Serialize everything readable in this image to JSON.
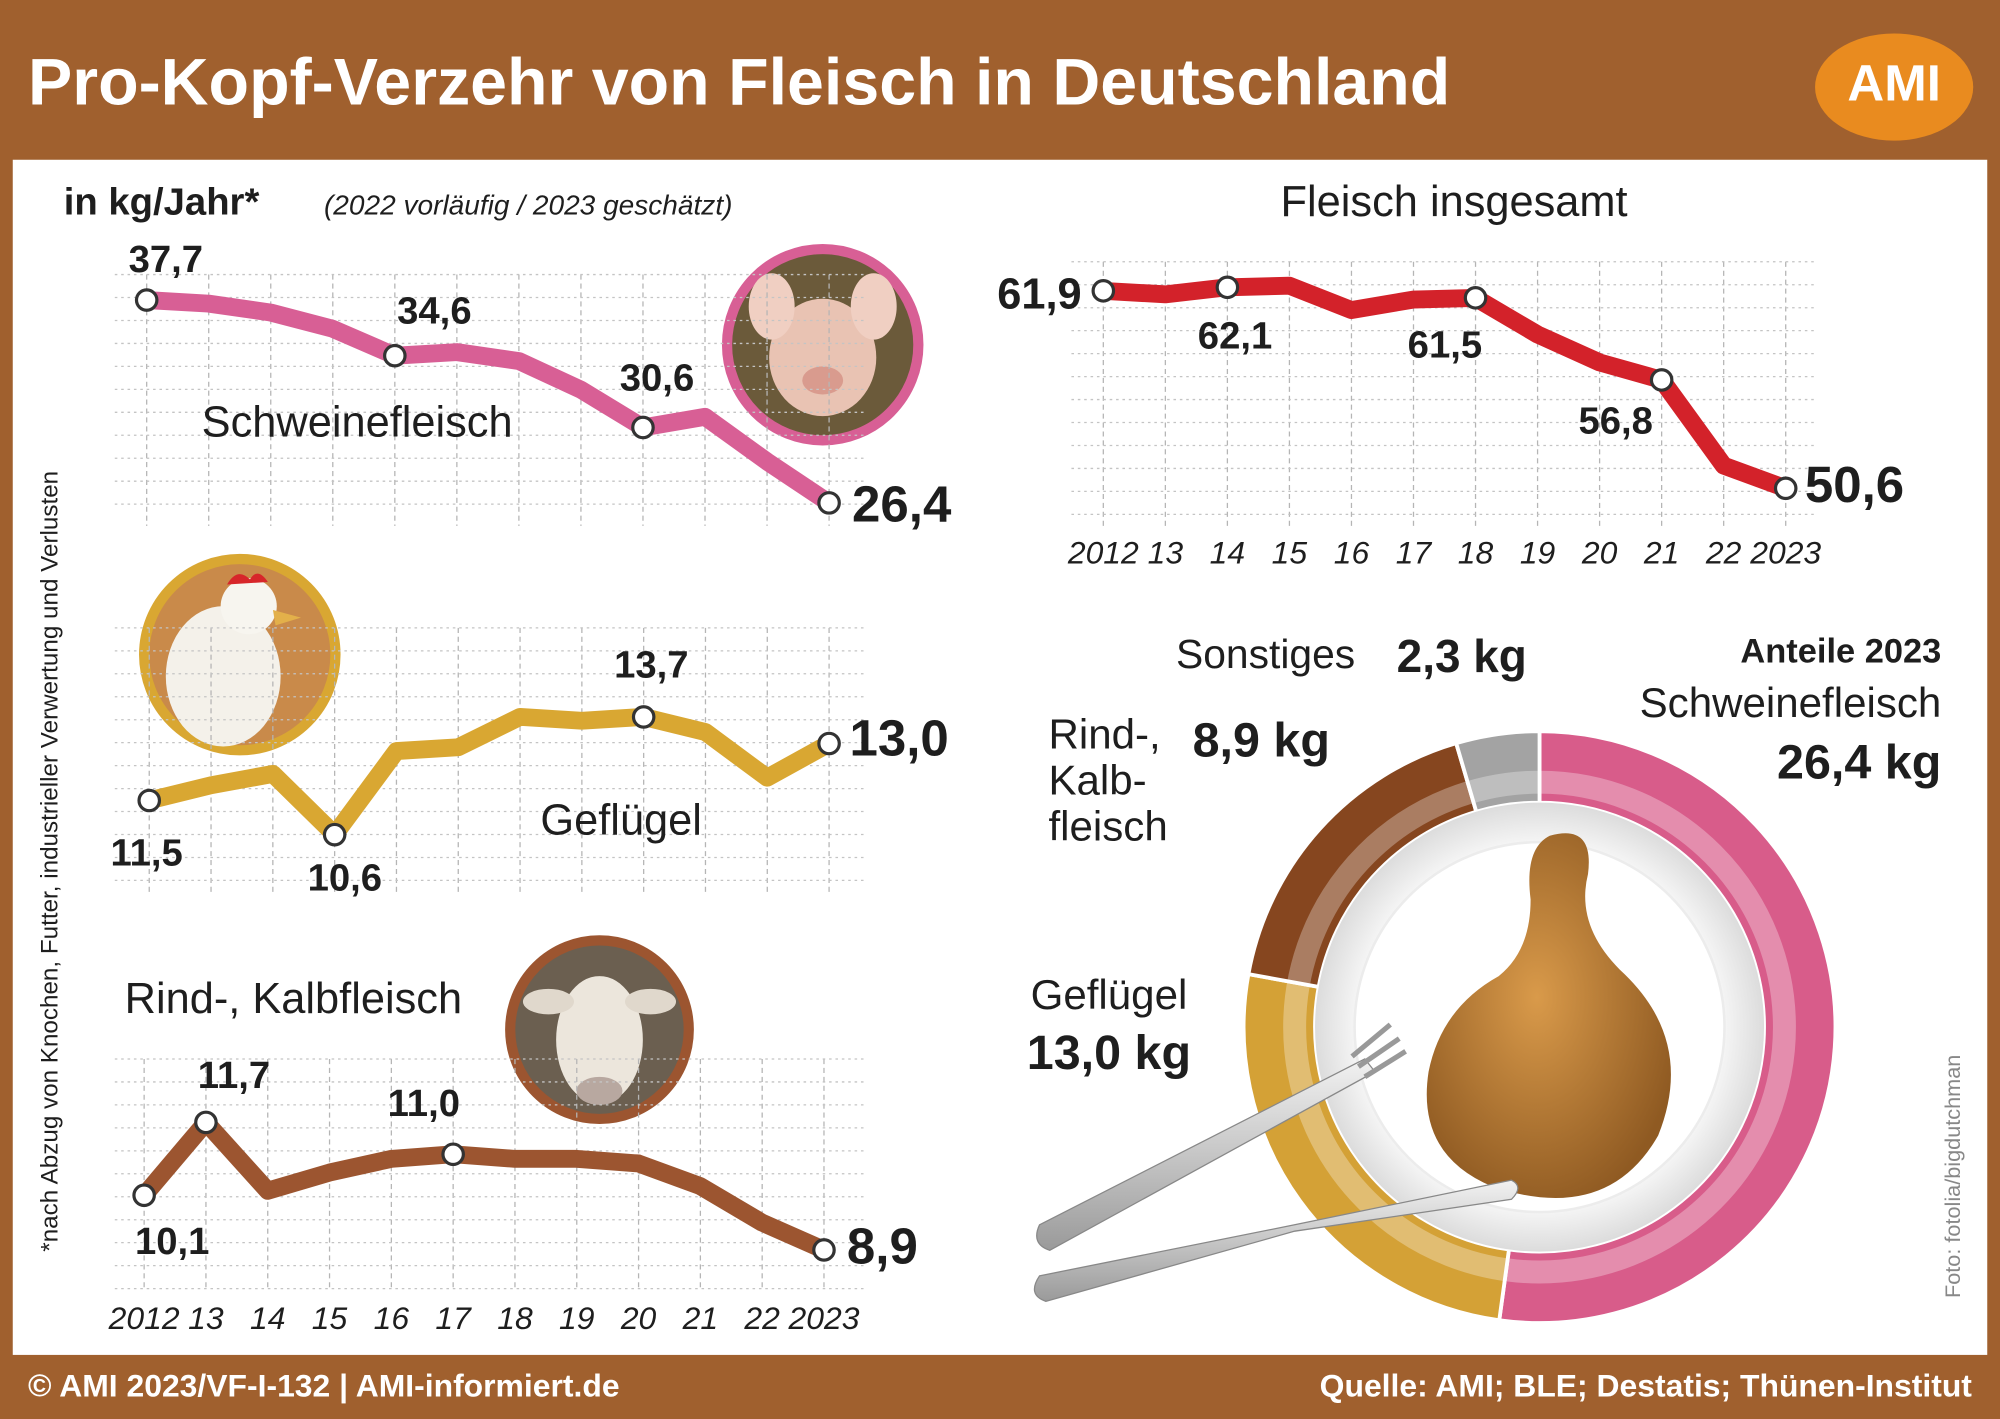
{
  "header": {
    "title": "Pro-Kopf-Verzehr von Fleisch in Deutschland",
    "logo": "AMI"
  },
  "unit": "in kg/Jahr*",
  "unit_note": "(2022 vorläufig / 2023 geschätzt)",
  "footnote": "*nach Abzug von Knochen, Futter, industrieller Verwertung und Verlusten",
  "photo_credit": "Foto: fotolia/bigdutchman",
  "footer": {
    "left": "© AMI 2023/VF-I-132 | AMI-informiert.de",
    "right": "Quelle: AMI; BLE; Destatis; Thünen-Institut"
  },
  "chart_data": [
    {
      "type": "line",
      "title": "Schweinefleisch",
      "color": "#d85f95",
      "values": [
        37.7,
        37.5,
        37.0,
        36.1,
        34.6,
        34.8,
        34.3,
        32.7,
        30.6,
        31.2,
        28.7,
        26.4
      ],
      "value_labels": [
        "37,7",
        null,
        null,
        null,
        "34,6",
        null,
        null,
        null,
        "30,6",
        null,
        null,
        "26,4"
      ],
      "ylim": [
        25,
        39
      ],
      "grid": true
    },
    {
      "type": "line",
      "title": "Geflügel",
      "color": "#d9a732",
      "values": [
        11.5,
        11.9,
        12.2,
        10.6,
        12.8,
        12.9,
        13.7,
        13.6,
        13.7,
        13.3,
        12.1,
        13.0
      ],
      "value_labels": [
        "11,5",
        null,
        null,
        "10,6",
        null,
        null,
        null,
        null,
        "13,7",
        null,
        null,
        "13,0"
      ],
      "ylim": [
        10,
        14.5
      ],
      "grid": true
    },
    {
      "type": "line",
      "title": "Rind-, Kalbfleisch",
      "color": "#9c5530",
      "categories": [
        "2012",
        "13",
        "14",
        "15",
        "16",
        "17",
        "18",
        "19",
        "20",
        "21",
        "22",
        "2023"
      ],
      "values": [
        10.1,
        11.7,
        10.2,
        10.6,
        10.9,
        11.0,
        10.9,
        10.9,
        10.8,
        10.3,
        9.5,
        8.9
      ],
      "value_labels": [
        "10,1",
        "11,7",
        null,
        null,
        null,
        "11,0",
        null,
        null,
        null,
        null,
        null,
        "8,9"
      ],
      "ylim": [
        8.5,
        12
      ],
      "grid": true
    },
    {
      "type": "line",
      "title": "Fleisch insgesamt",
      "color": "#d3222a",
      "categories": [
        "2012",
        "13",
        "14",
        "15",
        "16",
        "17",
        "18",
        "19",
        "20",
        "21",
        "22",
        "2023"
      ],
      "values": [
        61.9,
        61.7,
        62.1,
        62.2,
        60.8,
        61.4,
        61.5,
        59.4,
        57.8,
        56.8,
        51.9,
        50.6
      ],
      "value_labels": [
        "61,9",
        null,
        "62,1",
        null,
        null,
        null,
        "61,5",
        null,
        null,
        "56,8",
        null,
        "50,6"
      ],
      "ylim": [
        49,
        63
      ],
      "grid": true
    },
    {
      "type": "donut",
      "title": "Anteile 2023",
      "categories": [
        "Schweinefleisch",
        "Geflügel",
        [
          "Rind-,",
          "Kalb-",
          "fleisch"
        ],
        "Sonstiges"
      ],
      "values": [
        26.4,
        13.0,
        8.9,
        2.3
      ],
      "value_labels": [
        "26,4 kg",
        "13,0 kg",
        "8,9 kg",
        "2,3 kg"
      ],
      "colors": [
        "#d85c8a",
        "#d4a136",
        "#86461f",
        "#a3a3a3"
      ]
    }
  ]
}
